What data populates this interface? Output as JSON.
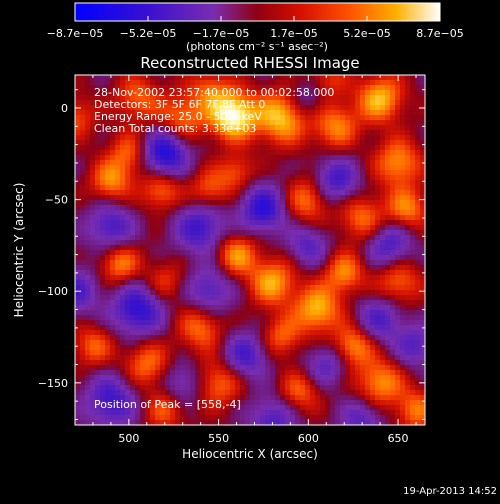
{
  "chart_data": {
    "type": "heatmap",
    "title": "Reconstructed RHESSI Image",
    "xlabel": "Heliocentric X (arcsec)",
    "ylabel": "Heliocentric Y (arcsec)",
    "xlim": [
      470,
      665
    ],
    "ylim": [
      -173,
      18
    ],
    "x_ticks": [
      500,
      550,
      600,
      650
    ],
    "x_tick_labels": [
      "500",
      "550",
      "600",
      "650"
    ],
    "y_ticks": [
      0,
      -50,
      -100,
      -150
    ],
    "y_tick_labels": [
      "0",
      "−50",
      "−100",
      "−150"
    ],
    "colorbar": {
      "min": -8.7e-05,
      "max": 8.7e-05,
      "tick_labels": [
        "−8.7e−05",
        "−5.2e−05",
        "−1.7e−05",
        "1.7e−05",
        "5.2e−05",
        "8.7e−05"
      ],
      "unit_label": "(photons cm⁻² s⁻¹ asec⁻²)"
    },
    "annotations": [
      "28-Nov-2002 23:57:40.000 to 00:02:58.000",
      "Detectors: 3F 5F 6F 7F 8F  Att 0",
      "Energy Range: 25.0 - 50.0 keV",
      "Clean     Total counts: 3.33e+03",
      "Position of Peak = [558,-4]"
    ],
    "peak": {
      "x": 558,
      "y": -4
    },
    "colors": {
      "cmap": [
        "#0000ff",
        "#5a1ea0",
        "#7a2cb0",
        "#a00000",
        "#ff3000",
        "#ffa000",
        "#ffff80",
        "#ffffff"
      ]
    }
  },
  "footer": {
    "timestamp": "19-Apr-2013 14:52"
  }
}
